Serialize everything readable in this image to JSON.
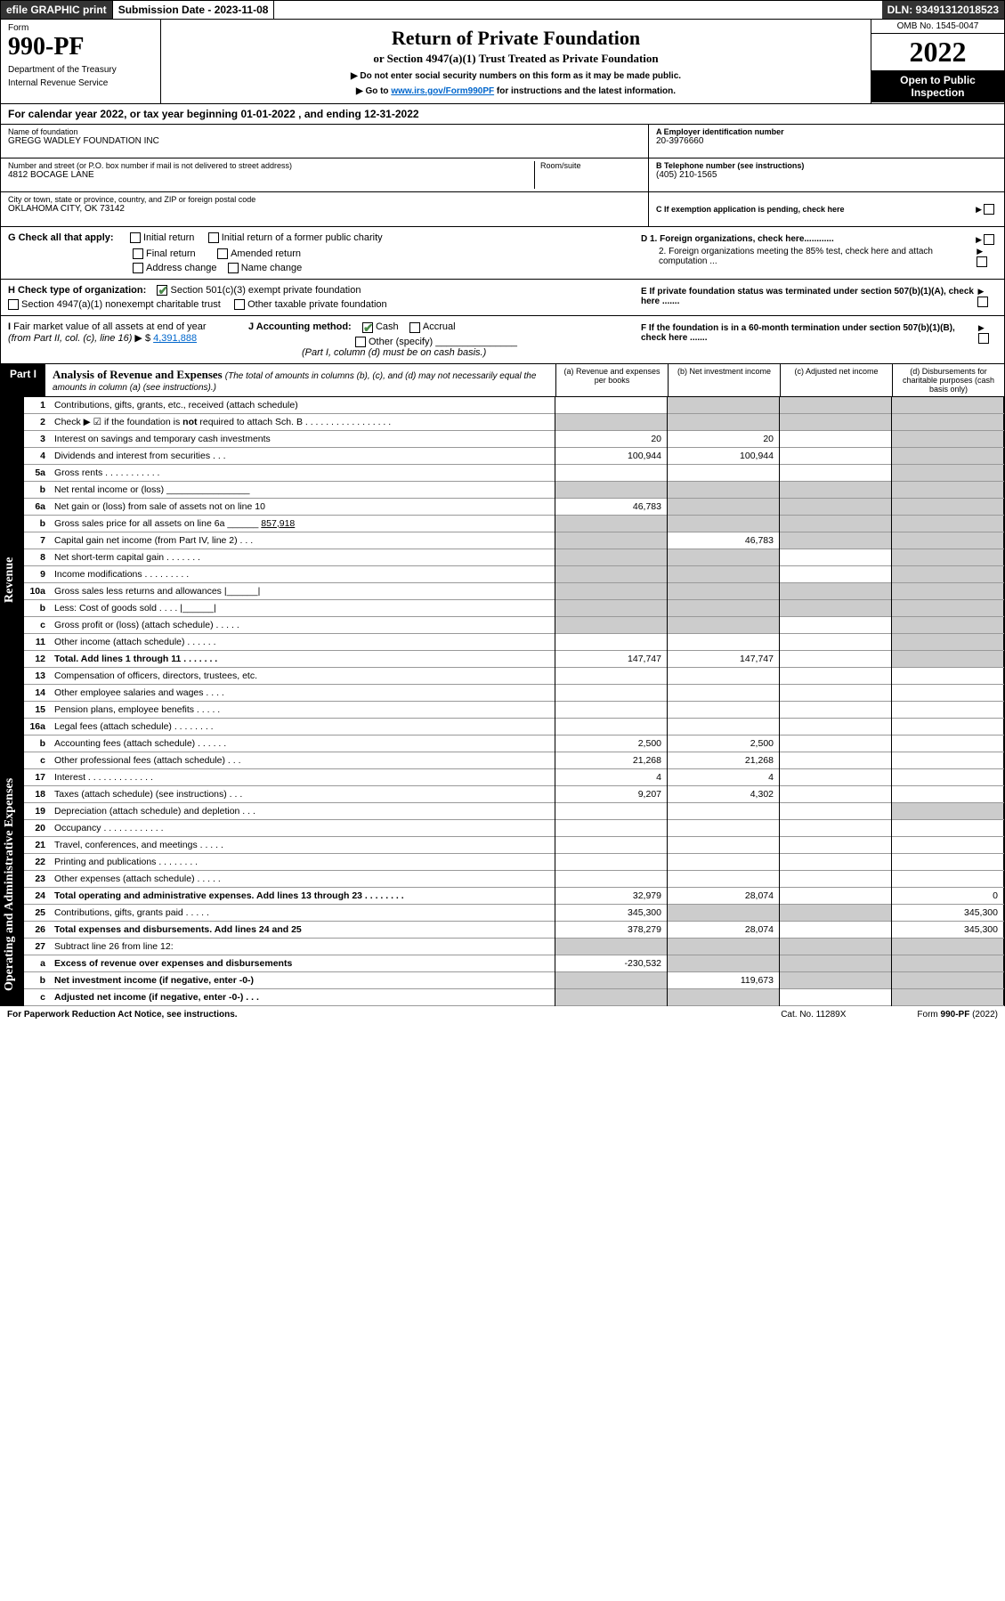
{
  "colors": {
    "link": "#0066cc",
    "check": "#4a8a4a",
    "grey_cell": "#cccccc",
    "header_dark": "#333333"
  },
  "header_bar": {
    "efile": "efile GRAPHIC print",
    "submission": "Submission Date - 2023-11-08",
    "dln": "DLN: 93491312018523"
  },
  "form_header": {
    "form_word": "Form",
    "form_number": "990-PF",
    "dept1": "Department of the Treasury",
    "dept2": "Internal Revenue Service",
    "title": "Return of Private Foundation",
    "subtitle": "or Section 4947(a)(1) Trust Treated as Private Foundation",
    "note1": "▶ Do not enter social security numbers on this form as it may be made public.",
    "note2_pre": "▶ Go to ",
    "note2_link": "www.irs.gov/Form990PF",
    "note2_post": " for instructions and the latest information.",
    "omb": "OMB No. 1545-0047",
    "year": "2022",
    "open": "Open to Public Inspection"
  },
  "cal_year": "For calendar year 2022, or tax year beginning 01-01-2022                                      , and ending 12-31-2022",
  "entity": {
    "name_lbl": "Name of foundation",
    "name": "GREGG WADLEY FOUNDATION INC",
    "addr_lbl": "Number and street (or P.O. box number if mail is not delivered to street address)",
    "room_lbl": "Room/suite",
    "addr": "4812 BOCAGE LANE",
    "city_lbl": "City or town, state or province, country, and ZIP or foreign postal code",
    "city": "OKLAHOMA CITY, OK  73142",
    "ein_lbl": "A Employer identification number",
    "ein": "20-3976660",
    "tel_lbl": "B Telephone number (see instructions)",
    "tel": "(405) 210-1565",
    "c_lbl": "C If exemption application is pending, check here"
  },
  "section_g": {
    "label": "G Check all that apply:",
    "opts": [
      "Initial return",
      "Initial return of a former public charity",
      "Final return",
      "Amended return",
      "Address change",
      "Name change"
    ]
  },
  "section_d": {
    "d1": "D 1. Foreign organizations, check here............",
    "d2": "2. Foreign organizations meeting the 85% test, check here and attach computation ...",
    "e": "E  If private foundation status was terminated under section 507(b)(1)(A), check here .......",
    "f": "F  If the foundation is in a 60-month termination under section 507(b)(1)(B), check here ......."
  },
  "section_h": {
    "label": "H Check type of organization:",
    "opt1": "Section 501(c)(3) exempt private foundation",
    "opt2": "Section 4947(a)(1) nonexempt charitable trust",
    "opt3": "Other taxable private foundation"
  },
  "section_i": {
    "label_pre": "I Fair market value of all assets at end of year (from Part II, col. (c), line 16) ▶ $ ",
    "value": "4,391,888"
  },
  "section_j": {
    "label": "J Accounting method:",
    "cash": "Cash",
    "accrual": "Accrual",
    "other": "Other (specify)",
    "note": "(Part I, column (d) must be on cash basis.)"
  },
  "part1": {
    "tag": "Part I",
    "title": "Analysis of Revenue and Expenses",
    "title_note": " (The total of amounts in columns (b), (c), and (d) may not necessarily equal the amounts in column (a) (see instructions).)",
    "col_a": "(a)  Revenue and expenses per books",
    "col_b": "(b)  Net investment income",
    "col_c": "(c)  Adjusted net income",
    "col_d": "(d)  Disbursements for charitable purposes (cash basis only)"
  },
  "side_labels": {
    "rev": "Revenue",
    "exp": "Operating and Administrative Expenses"
  },
  "rows": [
    {
      "ln": "1",
      "desc": "Contributions, gifts, grants, etc., received (attach schedule)",
      "a": "",
      "b_grey": true,
      "c_grey": true,
      "d_grey": true
    },
    {
      "ln": "2",
      "desc": "Check ▶ ☑ if the foundation is <b>not</b> required to attach Sch. B  . . . . . . . . . . . . . . . . .",
      "a_grey": true,
      "b_grey": true,
      "c_grey": true,
      "d_grey": true
    },
    {
      "ln": "3",
      "desc": "Interest on savings and temporary cash investments",
      "a": "20",
      "b": "20",
      "c": "",
      "d_grey": true
    },
    {
      "ln": "4",
      "desc": "Dividends and interest from securities   .  .  .",
      "a": "100,944",
      "b": "100,944",
      "c": "",
      "d_grey": true
    },
    {
      "ln": "5a",
      "desc": "Gross rents   .  .  .  .  .  .  .  .  .  .  .",
      "a": "",
      "b": "",
      "c": "",
      "d_grey": true
    },
    {
      "ln": "b",
      "desc": "Net rental income or (loss)  ________________",
      "a_grey": true,
      "b_grey": true,
      "c_grey": true,
      "d_grey": true
    },
    {
      "ln": "6a",
      "desc": "Net gain or (loss) from sale of assets not on line 10",
      "a": "46,783",
      "b_grey": true,
      "c_grey": true,
      "d_grey": true
    },
    {
      "ln": "b",
      "desc": "Gross sales price for all assets on line 6a ______ <u>857,918</u>",
      "a_grey": true,
      "b_grey": true,
      "c_grey": true,
      "d_grey": true
    },
    {
      "ln": "7",
      "desc": "Capital gain net income (from Part IV, line 2)    .  .  .",
      "a_grey": true,
      "b": "46,783",
      "c_grey": true,
      "d_grey": true
    },
    {
      "ln": "8",
      "desc": "Net short-term capital gain  .  .  .  .  .  .  .",
      "a_grey": true,
      "b_grey": true,
      "c": "",
      "d_grey": true
    },
    {
      "ln": "9",
      "desc": "Income modifications .  .  .  .  .  .  .  .  .",
      "a_grey": true,
      "b_grey": true,
      "c": "",
      "d_grey": true
    },
    {
      "ln": "10a",
      "desc": "Gross sales less returns and allowances  |______|",
      "a_grey": true,
      "b_grey": true,
      "c_grey": true,
      "d_grey": true
    },
    {
      "ln": "b",
      "desc": "Less: Cost of goods sold   .  .  .  .   |______|",
      "a_grey": true,
      "b_grey": true,
      "c_grey": true,
      "d_grey": true
    },
    {
      "ln": "c",
      "desc": "Gross profit or (loss) (attach schedule)    .  .  .  .  .",
      "a_grey": true,
      "b_grey": true,
      "c": "",
      "d_grey": true
    },
    {
      "ln": "11",
      "desc": "Other income (attach schedule)   .  .  .  .  .  .",
      "a": "",
      "b": "",
      "c": "",
      "d_grey": true
    },
    {
      "ln": "12",
      "desc": "<b>Total.</b> Add lines 1 through 11  .  .  .  .  .  .  .",
      "a": "147,747",
      "b": "147,747",
      "c": "",
      "d_grey": true,
      "bold": true
    },
    {
      "ln": "13",
      "desc": "Compensation of officers, directors, trustees, etc.",
      "a": "",
      "b": "",
      "c": "",
      "d": ""
    },
    {
      "ln": "14",
      "desc": "Other employee salaries and wages   .  .  .  .",
      "a": "",
      "b": "",
      "c": "",
      "d": ""
    },
    {
      "ln": "15",
      "desc": "Pension plans, employee benefits  .  .  .  .  .",
      "a": "",
      "b": "",
      "c": "",
      "d": ""
    },
    {
      "ln": "16a",
      "desc": "Legal fees (attach schedule) .  .  .  .  .  .  .  .",
      "a": "",
      "b": "",
      "c": "",
      "d": ""
    },
    {
      "ln": "b",
      "desc": "Accounting fees (attach schedule) .  .  .  .  .  .",
      "a": "2,500",
      "b": "2,500",
      "c": "",
      "d": ""
    },
    {
      "ln": "c",
      "desc": "Other professional fees (attach schedule)   .  .  .",
      "a": "21,268",
      "b": "21,268",
      "c": "",
      "d": ""
    },
    {
      "ln": "17",
      "desc": "Interest .  .  .  .  .  .  .  .  .  .  .  .  .",
      "a": "4",
      "b": "4",
      "c": "",
      "d": ""
    },
    {
      "ln": "18",
      "desc": "Taxes (attach schedule) (see instructions)     .  .  .",
      "a": "9,207",
      "b": "4,302",
      "c": "",
      "d": ""
    },
    {
      "ln": "19",
      "desc": "Depreciation (attach schedule) and depletion   .  .  .",
      "a": "",
      "b": "",
      "c": "",
      "d_grey": true
    },
    {
      "ln": "20",
      "desc": "Occupancy .  .  .  .  .  .  .  .  .  .  .  .",
      "a": "",
      "b": "",
      "c": "",
      "d": ""
    },
    {
      "ln": "21",
      "desc": "Travel, conferences, and meetings .  .  .  .  .",
      "a": "",
      "b": "",
      "c": "",
      "d": ""
    },
    {
      "ln": "22",
      "desc": "Printing and publications .  .  .  .  .  .  .  .",
      "a": "",
      "b": "",
      "c": "",
      "d": ""
    },
    {
      "ln": "23",
      "desc": "Other expenses (attach schedule) .  .  .  .  .",
      "a": "",
      "b": "",
      "c": "",
      "d": ""
    },
    {
      "ln": "24",
      "desc": "<b>Total operating and administrative expenses.</b> Add lines 13 through 23  .  .  .  .  .  .  .  .",
      "a": "32,979",
      "b": "28,074",
      "c": "",
      "d": "0",
      "bold": true
    },
    {
      "ln": "25",
      "desc": "Contributions, gifts, grants paid    .  .  .  .  .",
      "a": "345,300",
      "b_grey": true,
      "c_grey": true,
      "d": "345,300"
    },
    {
      "ln": "26",
      "desc": "<b>Total expenses and disbursements.</b> Add lines 24 and 25",
      "a": "378,279",
      "b": "28,074",
      "c": "",
      "d": "345,300",
      "bold": true
    },
    {
      "ln": "27",
      "desc": "Subtract line 26 from line 12:",
      "a_grey": true,
      "b_grey": true,
      "c_grey": true,
      "d_grey": true
    },
    {
      "ln": "a",
      "desc": "<b>Excess of revenue over expenses and disbursements</b>",
      "a": "-230,532",
      "b_grey": true,
      "c_grey": true,
      "d_grey": true,
      "bold": true
    },
    {
      "ln": "b",
      "desc": "<b>Net investment income</b> (if negative, enter -0-)",
      "a_grey": true,
      "b": "119,673",
      "c_grey": true,
      "d_grey": true,
      "bold": true
    },
    {
      "ln": "c",
      "desc": "<b>Adjusted net income</b> (if negative, enter -0-)   .  .  .",
      "a_grey": true,
      "b_grey": true,
      "c": "",
      "d_grey": true,
      "bold": true
    }
  ],
  "footer": {
    "left": "For Paperwork Reduction Act Notice, see instructions.",
    "mid": "Cat. No. 11289X",
    "right_pre": "Form ",
    "right_form": "990-PF",
    "right_post": " (2022)"
  }
}
